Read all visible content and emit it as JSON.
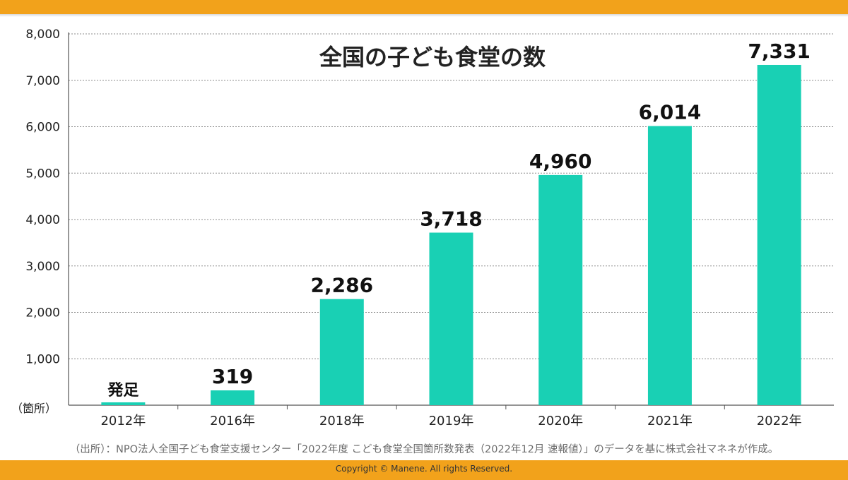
{
  "chart_data": {
    "type": "bar",
    "title": "全国の子ども食堂の数",
    "ylabel": "（箇所）",
    "xlabel": "",
    "categories": [
      "2012年",
      "2016年",
      "2018年",
      "2019年",
      "2020年",
      "2021年",
      "2022年"
    ],
    "values": [
      0,
      319,
      2286,
      3718,
      4960,
      6014,
      7331
    ],
    "data_labels": [
      "発足",
      "319",
      "2,286",
      "3,718",
      "4,960",
      "6,014",
      "7,331"
    ],
    "ylim": [
      0,
      8000
    ],
    "yticks": [
      0,
      1000,
      2000,
      3000,
      4000,
      5000,
      6000,
      7000,
      8000
    ],
    "ytick_labels": [
      "",
      "1,000",
      "2,000",
      "3,000",
      "4,000",
      "5,000",
      "6,000",
      "7,000",
      "8,000"
    ],
    "grid": true,
    "bar_color": "#19d0b4",
    "grid_color": "#8c8c8c"
  },
  "footer": {
    "source": "（出所）：NPO法人全国子ども食堂支援センター「2022年度 こども食堂全国箇所数発表（2022年12月 速報値）」のデータを基に株式会社マネネが作成。",
    "copyright": "Copyright © Manene. All rights Reserved."
  },
  "colors": {
    "accent_bar": "#f2a21b"
  }
}
